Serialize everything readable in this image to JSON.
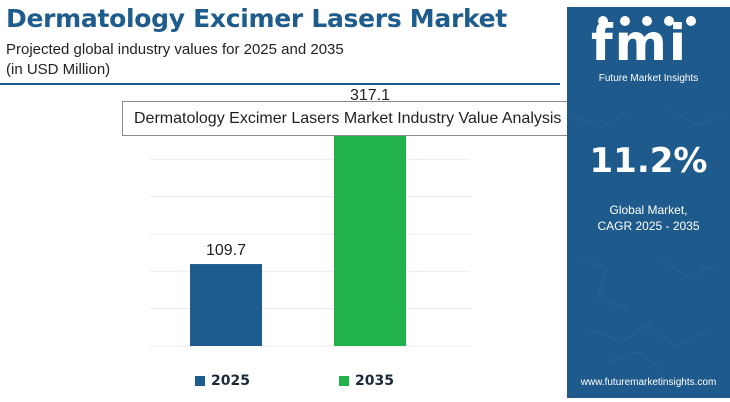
{
  "header": {
    "title": "Dermatology Excimer Lasers Market",
    "subtitle_line1": "Projected global industry values for 2025 and 2035",
    "subtitle_line2": "(in USD Million)"
  },
  "tooltip": {
    "text": "Dermatology Excimer Lasers Market Industry Value Analysis"
  },
  "sidebar": {
    "logo_text": "fmi",
    "logo_subtitle": "Future Market Insights",
    "cagr_value": "11.2%",
    "cagr_label_line1": "Global Market,",
    "cagr_label_line2": "CAGR 2025 - 2035",
    "website": "www.futuremarketinsights.com",
    "background_color": "#1e5b8c"
  },
  "colors": {
    "title": "#1f5c8e",
    "series_2025": "#1f5c8e",
    "series_2035": "#21b24b"
  },
  "chart_data": {
    "type": "bar",
    "categories": [
      "2025",
      "2035"
    ],
    "values": [
      109.7,
      317.1
    ],
    "data_labels": [
      "109.7",
      "317.1"
    ],
    "ylim": [
      0,
      340
    ],
    "grid": true,
    "legend": "bottom",
    "series": [
      {
        "name": "2025",
        "values": [
          109.7,
          null
        ],
        "color": "#1f5c8e"
      },
      {
        "name": "2035",
        "values": [
          null,
          317.1
        ],
        "color": "#21b24b"
      }
    ]
  }
}
